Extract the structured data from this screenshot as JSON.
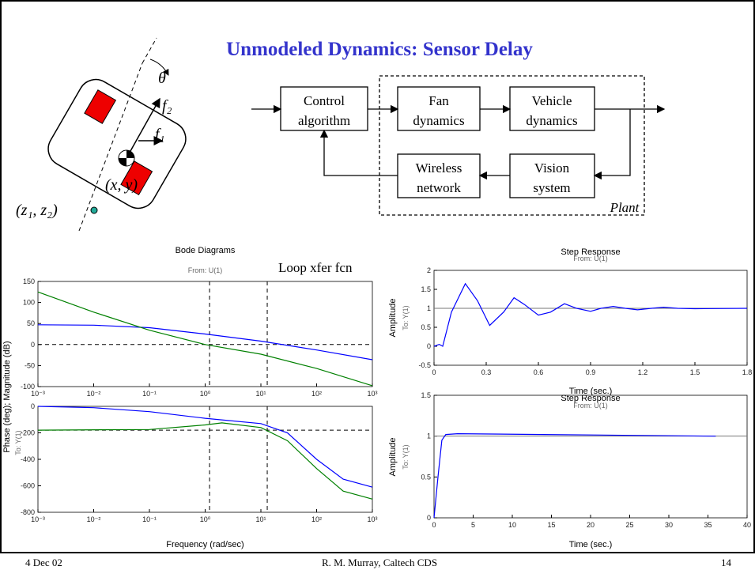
{
  "header": {
    "title": "Unmodeled Dynamics: Sensor Delay"
  },
  "robot": {
    "labels": [
      "θ",
      "f₂",
      "f₁",
      "(x, y)",
      "(z₁, z₂)"
    ]
  },
  "diagram": {
    "blocks": [
      [
        "Control",
        "algorithm"
      ],
      [
        "Fan",
        "dynamics"
      ],
      [
        "Vehicle",
        "dynamics"
      ],
      [
        "Wireless",
        "network"
      ],
      [
        "Vision",
        "system"
      ]
    ],
    "group_label": "Plant"
  },
  "chart_data": [
    {
      "type": "line",
      "title": "Bode Diagrams",
      "subtitle": "From: U(1)",
      "annotation": "Loop xfer fcn",
      "y_label": "Phase (deg); Magnitude (dB)",
      "y_sublabel": "To: Y(1)",
      "xscale": "log",
      "xlim": [
        0.001,
        1000
      ],
      "ylim": [
        -100,
        150
      ],
      "yticks": [
        -100,
        -50,
        0,
        50,
        100,
        150
      ],
      "xticks": [
        {
          "value": 0.001,
          "label": "10⁻³"
        },
        {
          "value": 0.01,
          "label": "10⁻²"
        },
        {
          "value": 0.1,
          "label": "10⁻¹"
        },
        {
          "value": 1,
          "label": "10⁰"
        },
        {
          "value": 10,
          "label": "10¹"
        },
        {
          "value": 100,
          "label": "10²"
        },
        {
          "value": 1000,
          "label": "10³"
        }
      ],
      "hline": 0,
      "vlines": [
        1.2,
        13
      ],
      "series": [
        {
          "color": "#0000ff",
          "x": [
            0.001,
            0.01,
            0.1,
            1,
            10,
            100,
            1000
          ],
          "values": [
            47,
            46,
            40,
            25,
            8,
            -13,
            -36
          ]
        },
        {
          "color": "#008000",
          "x": [
            0.001,
            0.01,
            0.1,
            1,
            10,
            100,
            1000
          ],
          "values": [
            125,
            77,
            34,
            0,
            -23,
            -57,
            -98
          ]
        }
      ]
    },
    {
      "type": "line",
      "x_label": "Frequency (rad/sec)",
      "xscale": "log",
      "xlim": [
        0.001,
        1000
      ],
      "ylim": [
        -800,
        0
      ],
      "yticks": [
        -800,
        -600,
        -400,
        -200,
        0
      ],
      "xticks": [
        {
          "value": 0.001,
          "label": "10⁻³"
        },
        {
          "value": 0.01,
          "label": "10⁻²"
        },
        {
          "value": 0.1,
          "label": "10⁻¹"
        },
        {
          "value": 1,
          "label": "10⁰"
        },
        {
          "value": 10,
          "label": "10¹"
        },
        {
          "value": 100,
          "label": "10²"
        },
        {
          "value": 1000,
          "label": "10³"
        }
      ],
      "hline": -180,
      "vlines": [
        1.2,
        13
      ],
      "series": [
        {
          "color": "#0000ff",
          "x": [
            0.001,
            0.01,
            0.1,
            1,
            10,
            30,
            100,
            300,
            1000
          ],
          "values": [
            0,
            -10,
            -40,
            -90,
            -130,
            -200,
            -400,
            -550,
            -610
          ]
        },
        {
          "color": "#008000",
          "x": [
            0.001,
            0.1,
            1,
            2,
            10,
            30,
            100,
            300,
            1000
          ],
          "values": [
            -180,
            -175,
            -140,
            -125,
            -160,
            -260,
            -470,
            -640,
            -700
          ]
        }
      ]
    },
    {
      "type": "line",
      "title": "Step Response",
      "subtitle": "From: U(1)",
      "y_label": "Amplitude",
      "y_sublabel": "To: Y(1)",
      "x_label": "Time (sec.)",
      "xlim": [
        0,
        1.8
      ],
      "ylim": [
        -0.5,
        2
      ],
      "xticks": [
        0,
        0.3,
        0.6,
        0.9,
        1.2,
        1.5,
        1.8
      ],
      "yticks": [
        -0.5,
        0,
        0.5,
        1,
        1.5,
        2
      ],
      "refline": 1,
      "series": [
        {
          "color": "#0000ff",
          "x": [
            0,
            0.03,
            0.05,
            0.1,
            0.18,
            0.25,
            0.32,
            0.4,
            0.46,
            0.52,
            0.6,
            0.67,
            0.75,
            0.82,
            0.9,
            0.96,
            1.03,
            1.1,
            1.17,
            1.25,
            1.32,
            1.4,
            1.5,
            1.8
          ],
          "values": [
            0,
            0.05,
            0,
            0.9,
            1.65,
            1.2,
            0.55,
            0.9,
            1.28,
            1.1,
            0.82,
            0.9,
            1.12,
            1.0,
            0.92,
            1.0,
            1.05,
            1.0,
            0.96,
            1.0,
            1.03,
            1.0,
            0.99,
            1.0
          ]
        }
      ]
    },
    {
      "type": "line",
      "title": "Step Response",
      "subtitle": "From: U(1)",
      "y_label": "Amplitude",
      "y_sublabel": "To: Y(1)",
      "x_label": "Time (sec.)",
      "xlim": [
        0,
        40
      ],
      "ylim": [
        0,
        1.5
      ],
      "xticks": [
        0,
        5,
        10,
        15,
        20,
        25,
        30,
        35,
        40
      ],
      "yticks": [
        0,
        0.5,
        1,
        1.5
      ],
      "refline": 1,
      "series": [
        {
          "color": "#0000ff",
          "x": [
            0,
            0.5,
            1,
            1.5,
            3,
            14,
            36
          ],
          "values": [
            0,
            0.5,
            0.95,
            1.02,
            1.03,
            1.02,
            1.0
          ]
        }
      ]
    }
  ],
  "footer": {
    "date": "4 Dec 02",
    "author": "R. M. Murray, Caltech CDS",
    "page": "14"
  }
}
